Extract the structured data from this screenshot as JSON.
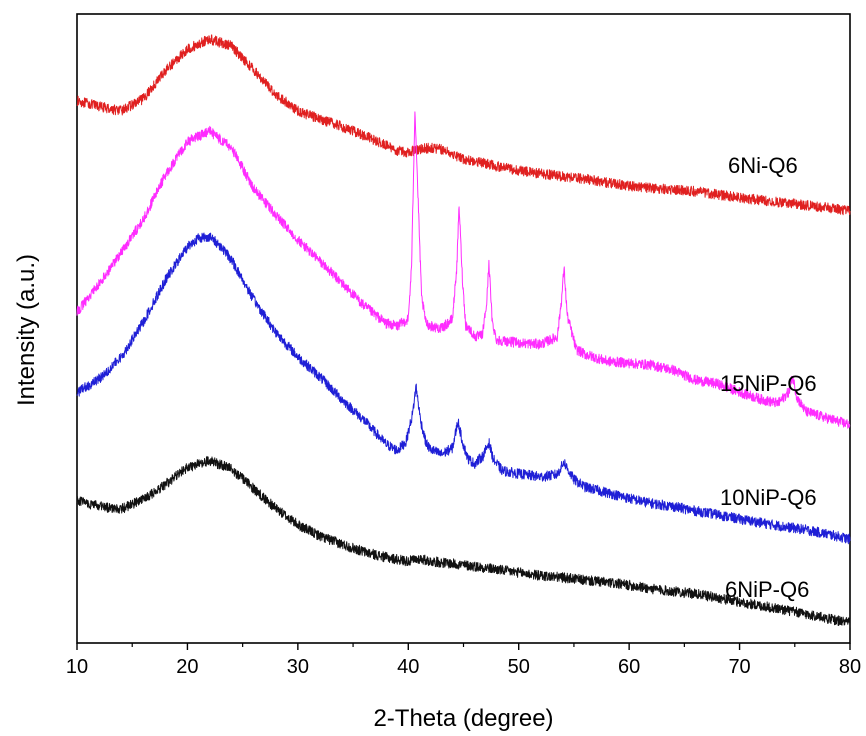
{
  "chart_data": {
    "type": "line",
    "title": "",
    "xlabel": "2-Theta (degree)",
    "ylabel": "Intensity (a.u.)",
    "xlim": [
      10,
      80
    ],
    "ylim": [
      0,
      100
    ],
    "x_ticks": [
      "10",
      "20",
      "30",
      "40",
      "50",
      "60",
      "70",
      "80"
    ],
    "y_ticks_shown": false,
    "grid": false,
    "legend": "inline labels at right",
    "series": [
      {
        "name": "6Ni-Q6",
        "color": "#e02020",
        "points": [
          [
            10,
            86.2
          ],
          [
            12,
            85.3
          ],
          [
            14,
            84.6
          ],
          [
            16,
            86.5
          ],
          [
            18,
            91.0
          ],
          [
            20,
            94.4
          ],
          [
            22,
            96.0
          ],
          [
            24,
            94.9
          ],
          [
            26,
            91.1
          ],
          [
            28,
            87.2
          ],
          [
            30,
            84.6
          ],
          [
            32,
            83.3
          ],
          [
            34,
            82.1
          ],
          [
            36,
            80.7
          ],
          [
            38,
            79.1
          ],
          [
            39,
            78.3
          ],
          [
            40,
            78.0
          ],
          [
            41,
            78.5
          ],
          [
            42,
            78.7
          ],
          [
            43,
            78.5
          ],
          [
            44,
            77.8
          ],
          [
            45,
            76.9
          ],
          [
            46,
            76.6
          ],
          [
            48,
            75.8
          ],
          [
            50,
            75.1
          ],
          [
            52,
            74.6
          ],
          [
            54,
            74.2
          ],
          [
            56,
            73.8
          ],
          [
            58,
            73.2
          ],
          [
            60,
            72.7
          ],
          [
            62,
            72.3
          ],
          [
            64,
            72.1
          ],
          [
            66,
            71.8
          ],
          [
            68,
            71.3
          ],
          [
            70,
            70.8
          ],
          [
            72,
            70.4
          ],
          [
            74,
            70.0
          ],
          [
            76,
            69.6
          ],
          [
            78,
            69.2
          ],
          [
            80,
            68.7
          ]
        ]
      },
      {
        "name": "15NiP-Q6",
        "color": "#ff2cff",
        "points": [
          [
            10,
            52.6
          ],
          [
            12,
            57.1
          ],
          [
            14,
            62.1
          ],
          [
            16,
            67.3
          ],
          [
            18,
            74.4
          ],
          [
            20,
            79.7
          ],
          [
            22,
            81.4
          ],
          [
            24,
            78.7
          ],
          [
            26,
            72.3
          ],
          [
            28,
            68.0
          ],
          [
            30,
            64.1
          ],
          [
            32,
            60.7
          ],
          [
            34,
            57.2
          ],
          [
            36,
            53.6
          ],
          [
            38,
            50.8
          ],
          [
            39,
            50.4
          ],
          [
            40,
            51.5
          ],
          [
            40.3,
            60.0
          ],
          [
            40.6,
            85.0
          ],
          [
            40.9,
            70.0
          ],
          [
            41.2,
            55.0
          ],
          [
            41.6,
            50.9
          ],
          [
            42,
            50.4
          ],
          [
            43,
            50.0
          ],
          [
            44,
            51.5
          ],
          [
            44.4,
            60.0
          ],
          [
            44.6,
            69.6
          ],
          [
            44.9,
            58.0
          ],
          [
            45.2,
            50.5
          ],
          [
            45.6,
            49.8
          ],
          [
            46,
            48.7
          ],
          [
            46.7,
            48.9
          ],
          [
            47.1,
            54.0
          ],
          [
            47.3,
            60.6
          ],
          [
            47.6,
            51.0
          ],
          [
            48,
            48.2
          ],
          [
            50,
            47.7
          ],
          [
            52,
            47.5
          ],
          [
            53.5,
            48.7
          ],
          [
            53.9,
            55.0
          ],
          [
            54.1,
            59.7
          ],
          [
            54.4,
            52.0
          ],
          [
            54.8,
            49.4
          ],
          [
            55.2,
            46.7
          ],
          [
            56,
            45.9
          ],
          [
            58,
            44.8
          ],
          [
            60,
            44.5
          ],
          [
            62,
            44.2
          ],
          [
            64,
            43.4
          ],
          [
            66,
            41.8
          ],
          [
            68,
            41.2
          ],
          [
            70,
            39.9
          ],
          [
            72,
            38.7
          ],
          [
            73.5,
            38.1
          ],
          [
            74.5,
            40.0
          ],
          [
            74.8,
            42.5
          ],
          [
            75.2,
            39.0
          ],
          [
            76,
            36.8
          ],
          [
            78,
            35.7
          ],
          [
            80,
            34.7
          ]
        ]
      },
      {
        "name": "10NiP-Q6",
        "color": "#1f1fd6",
        "points": [
          [
            10,
            39.8
          ],
          [
            12,
            42.0
          ],
          [
            14,
            45.4
          ],
          [
            16,
            51.0
          ],
          [
            18,
            57.7
          ],
          [
            20,
            63.0
          ],
          [
            21,
            64.4
          ],
          [
            22,
            64.6
          ],
          [
            23,
            63.1
          ],
          [
            24,
            60.9
          ],
          [
            26,
            54.6
          ],
          [
            28,
            49.4
          ],
          [
            30,
            45.5
          ],
          [
            32,
            42.3
          ],
          [
            34,
            38.7
          ],
          [
            36,
            35.4
          ],
          [
            38,
            31.6
          ],
          [
            39,
            30.6
          ],
          [
            39.8,
            32.0
          ],
          [
            40.4,
            36.5
          ],
          [
            40.7,
            40.9
          ],
          [
            41.1,
            35.5
          ],
          [
            41.6,
            31.8
          ],
          [
            42,
            30.8
          ],
          [
            43,
            30.0
          ],
          [
            44,
            31.0
          ],
          [
            44.5,
            35.3
          ],
          [
            44.9,
            32.0
          ],
          [
            45.4,
            29.3
          ],
          [
            46,
            28.5
          ],
          [
            46.8,
            29.8
          ],
          [
            47.3,
            31.9
          ],
          [
            47.7,
            29.2
          ],
          [
            48.5,
            27.4
          ],
          [
            50,
            26.9
          ],
          [
            52,
            26.4
          ],
          [
            53.5,
            26.8
          ],
          [
            54.1,
            28.8
          ],
          [
            54.5,
            27.4
          ],
          [
            55,
            26.0
          ],
          [
            56,
            24.8
          ],
          [
            58,
            23.9
          ],
          [
            60,
            23.0
          ],
          [
            62,
            22.2
          ],
          [
            64,
            21.7
          ],
          [
            66,
            21.0
          ],
          [
            68,
            20.4
          ],
          [
            70,
            19.7
          ],
          [
            72,
            19.1
          ],
          [
            74,
            18.5
          ],
          [
            76,
            18.0
          ],
          [
            78,
            17.3
          ],
          [
            80,
            16.5
          ]
        ]
      },
      {
        "name": "6NiP-Q6",
        "color": "#111111",
        "points": [
          [
            10,
            22.7
          ],
          [
            12,
            21.7
          ],
          [
            14,
            21.3
          ],
          [
            16,
            22.8
          ],
          [
            18,
            25.2
          ],
          [
            20,
            27.9
          ],
          [
            22,
            29.0
          ],
          [
            24,
            27.7
          ],
          [
            26,
            24.5
          ],
          [
            28,
            21.4
          ],
          [
            30,
            18.8
          ],
          [
            32,
            17.0
          ],
          [
            34,
            15.7
          ],
          [
            36,
            14.5
          ],
          [
            38,
            13.6
          ],
          [
            40,
            13.0
          ],
          [
            41,
            13.4
          ],
          [
            42,
            13.0
          ],
          [
            44,
            12.6
          ],
          [
            46,
            12.2
          ],
          [
            48,
            11.7
          ],
          [
            50,
            11.2
          ],
          [
            52,
            10.7
          ],
          [
            54,
            10.4
          ],
          [
            56,
            10.0
          ],
          [
            58,
            9.6
          ],
          [
            60,
            9.2
          ],
          [
            62,
            8.6
          ],
          [
            64,
            8.2
          ],
          [
            66,
            7.8
          ],
          [
            68,
            7.2
          ],
          [
            70,
            6.5
          ],
          [
            72,
            5.9
          ],
          [
            74,
            5.3
          ],
          [
            76,
            4.6
          ],
          [
            78,
            3.9
          ],
          [
            80,
            3.2
          ]
        ]
      }
    ]
  },
  "labels": {
    "series_1": "6Ni-Q6",
    "series_2": "15NiP-Q6",
    "series_3": "10NiP-Q6",
    "series_4": "6NiP-Q6",
    "xlabel": "2-Theta (degree)",
    "ylabel": "Intensity (a.u.)"
  }
}
